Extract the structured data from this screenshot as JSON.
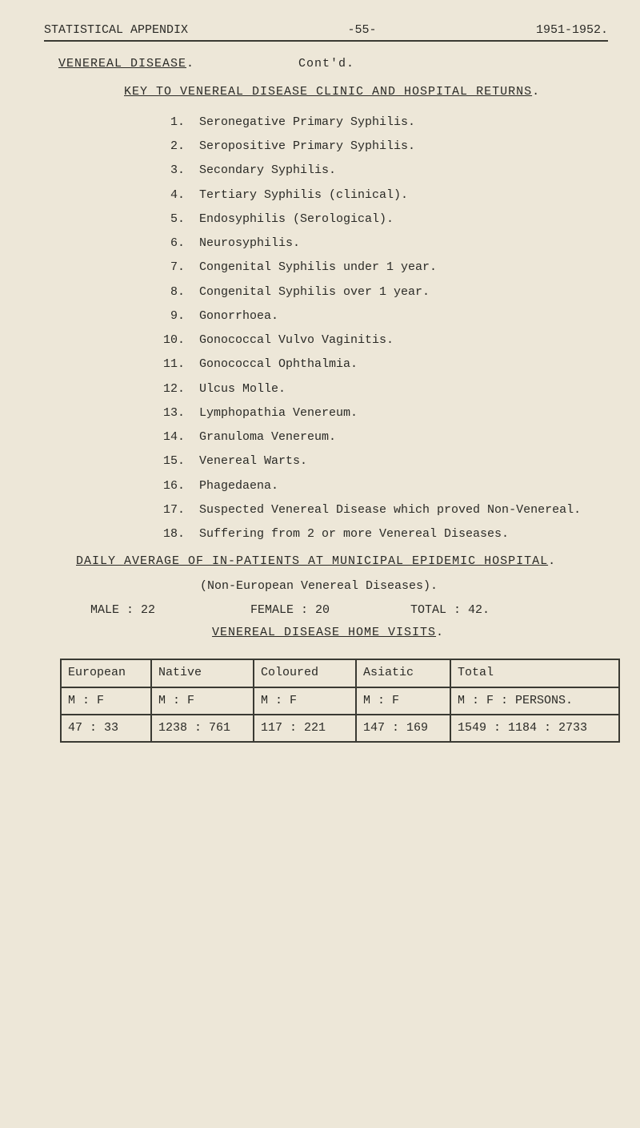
{
  "header": {
    "left": "STATISTICAL  APPENDIX",
    "center": "-55-",
    "right": "1951-1952."
  },
  "section": {
    "title_left": "VENEREAL  DISEASE",
    "title_right": "Cont'd.",
    "key_title": "KEY  TO  VENEREAL  DISEASE  CLINIC  AND  HOSPITAL  RETURNS"
  },
  "items": [
    {
      "n": "1.",
      "t": "Seronegative Primary Syphilis."
    },
    {
      "n": "2.",
      "t": "Seropositive Primary Syphilis."
    },
    {
      "n": "3.",
      "t": "Secondary Syphilis."
    },
    {
      "n": "4.",
      "t": "Tertiary Syphilis (clinical)."
    },
    {
      "n": "5.",
      "t": "Endosyphilis (Serological)."
    },
    {
      "n": "6.",
      "t": "Neurosyphilis."
    },
    {
      "n": "7.",
      "t": "Congenital Syphilis under 1 year."
    },
    {
      "n": "8.",
      "t": "Congenital Syphilis over 1 year."
    },
    {
      "n": "9.",
      "t": "Gonorrhoea."
    },
    {
      "n": "10.",
      "t": "Gonococcal Vulvo Vaginitis."
    },
    {
      "n": "11.",
      "t": "Gonococcal Ophthalmia."
    },
    {
      "n": "12.",
      "t": "Ulcus Molle."
    },
    {
      "n": "13.",
      "t": "Lymphopathia Venereum."
    },
    {
      "n": "14.",
      "t": "Granuloma Venereum."
    },
    {
      "n": "15.",
      "t": "Venereal Warts."
    },
    {
      "n": "16.",
      "t": "Phagedaena."
    },
    {
      "n": "17.",
      "t": "Suspected Venereal Disease which proved Non-Venereal."
    },
    {
      "n": "18.",
      "t": "Suffering from 2 or more Venereal Diseases."
    }
  ],
  "daily": "DAILY  AVERAGE  OF  IN-PATIENTS  AT  MUNICIPAL  EPIDEMIC  HOSPITAL",
  "noneuro": "(Non-European Venereal Diseases).",
  "counts": {
    "male": "MALE :  22",
    "female": "FEMALE :  20",
    "total": "TOTAL :  42."
  },
  "vdhv": "VENEREAL  DISEASE  HOME  VISITS",
  "table": {
    "head": [
      "European",
      "Native",
      "Coloured",
      "Asiatic",
      "Total"
    ],
    "sub": [
      "M  :  F",
      "M  :  F",
      "M  :  F",
      "M  :  F",
      "M  :  F    :    PERSONS."
    ],
    "row": [
      "47  :  33",
      "1238 : 761",
      "117 : 221",
      "147 :  169",
      "1549 : 1184   :    2733"
    ]
  }
}
